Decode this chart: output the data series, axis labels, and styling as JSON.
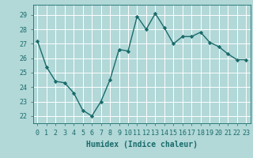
{
  "x": [
    0,
    1,
    2,
    3,
    4,
    5,
    6,
    7,
    8,
    9,
    10,
    11,
    12,
    13,
    14,
    15,
    16,
    17,
    18,
    19,
    20,
    21,
    22,
    23
  ],
  "y": [
    27.2,
    25.4,
    24.4,
    24.3,
    23.6,
    22.4,
    22.0,
    23.0,
    24.5,
    26.6,
    26.5,
    28.9,
    28.0,
    29.1,
    28.1,
    27.0,
    27.5,
    27.5,
    27.8,
    27.1,
    26.8,
    26.3,
    25.9,
    25.9
  ],
  "line_color": "#1a6b6b",
  "marker": "D",
  "marker_size": 2.2,
  "bg_color": "#b2d8d8",
  "grid_color": "#ffffff",
  "xlabel": "Humidex (Indice chaleur)",
  "ylim": [
    21.5,
    29.7
  ],
  "xlim": [
    -0.5,
    23.5
  ],
  "yticks": [
    22,
    23,
    24,
    25,
    26,
    27,
    28,
    29
  ],
  "xticks": [
    0,
    1,
    2,
    3,
    4,
    5,
    6,
    7,
    8,
    9,
    10,
    11,
    12,
    13,
    14,
    15,
    16,
    17,
    18,
    19,
    20,
    21,
    22,
    23
  ],
  "xlabel_fontsize": 7.0,
  "tick_fontsize": 6.0,
  "line_width": 1.0
}
